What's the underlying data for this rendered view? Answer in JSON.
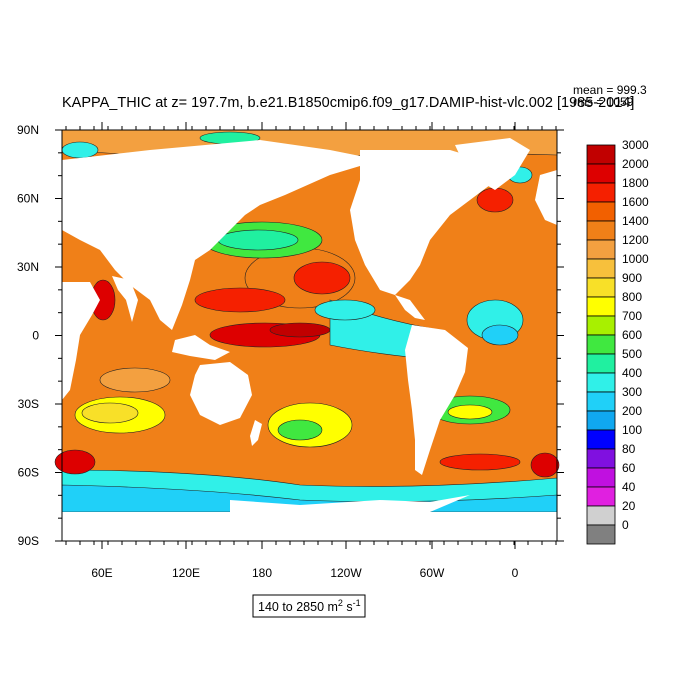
{
  "header": {
    "title": "KAPPA_THIC at z= 197.7m, b.e21.B1850cmip6.f09_g17.DAMIP-hist-vlc.002 [1985-2014]",
    "stat_mean": "mean = 999.3",
    "stat_rms": "rms = 1059"
  },
  "axes": {
    "lat_ticks": [
      "90N",
      "60N",
      "30N",
      "0",
      "30S",
      "60S",
      "90S"
    ],
    "lon_ticks": [
      "60E",
      "120E",
      "180",
      "120W",
      "60W",
      "0"
    ]
  },
  "colorbar": {
    "labels": [
      "3000",
      "2000",
      "1800",
      "1600",
      "1400",
      "1200",
      "1000",
      "900",
      "800",
      "700",
      "600",
      "500",
      "400",
      "300",
      "200",
      "100",
      "80",
      "60",
      "40",
      "20",
      "0"
    ],
    "colors": [
      "#c10000",
      "#dd0000",
      "#f52000",
      "#f26000",
      "#f08018",
      "#f3a040",
      "#f7c03c",
      "#f8e028",
      "#ffff00",
      "#a8f000",
      "#40e840",
      "#20f0a0",
      "#30f0e8",
      "#20d0f8",
      "#10a8f0",
      "#0000ff",
      "#8010e0",
      "#c010e0",
      "#e020e0",
      "#d0d0d0",
      "#808080"
    ]
  },
  "range_label": {
    "prefix": "140 to 2850 m",
    "sup": "2",
    "mid": " s",
    "sup2": "-1"
  }
}
